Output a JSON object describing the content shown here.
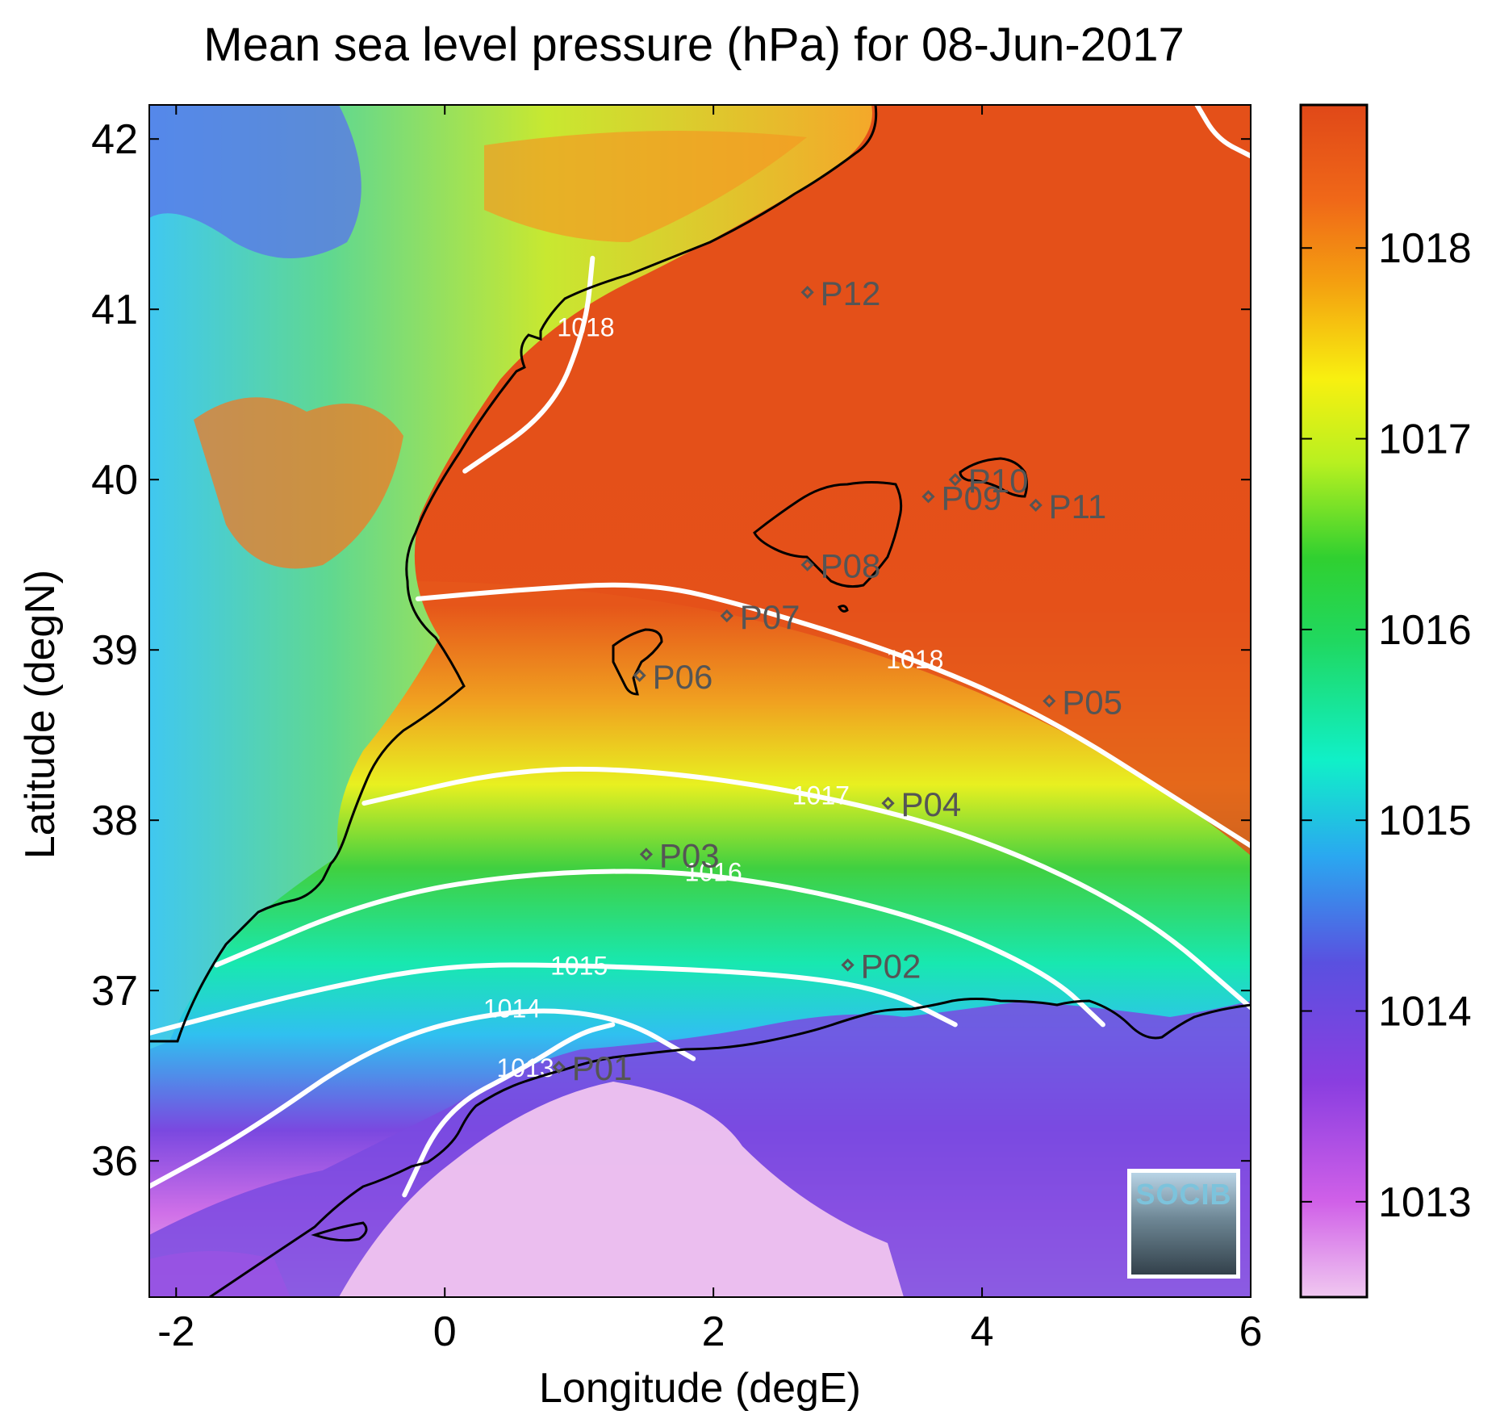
{
  "title": "Mean sea level pressure (hPa) for 08-Jun-2017",
  "xlabel": "Longitude (degE)",
  "ylabel": "Latitude (degN)",
  "logo_text": "SOCIB",
  "colors": {
    "land_high": "#f08a1e",
    "sea_max": "#e4501a",
    "contour": "#ffffff",
    "coast": "#000000",
    "marker": "#555555"
  },
  "chart_data": {
    "type": "heatmap",
    "title": "Mean sea level pressure (hPa) for 08-Jun-2017",
    "xlabel": "Longitude (degE)",
    "ylabel": "Latitude (degN)",
    "xlim": [
      -2.2,
      6.0
    ],
    "ylim": [
      35.2,
      42.2
    ],
    "xticks": [
      -2,
      0,
      2,
      4,
      6
    ],
    "yticks": [
      36,
      37,
      38,
      39,
      40,
      41,
      42
    ],
    "colorbar": {
      "ticks": [
        1013,
        1014,
        1015,
        1016,
        1017,
        1018
      ],
      "range": [
        1012.5,
        1018.75
      ]
    },
    "contours": [
      {
        "label": "1013",
        "points": [
          [
            -0.3,
            35.8
          ],
          [
            0.0,
            36.3
          ],
          [
            0.6,
            36.55
          ],
          [
            1.0,
            36.75
          ],
          [
            1.25,
            36.8
          ]
        ]
      },
      {
        "label": "1014",
        "points": [
          [
            -2.2,
            35.85
          ],
          [
            -1.5,
            36.15
          ],
          [
            -0.5,
            36.7
          ],
          [
            0.5,
            36.9
          ],
          [
            1.3,
            36.85
          ],
          [
            1.85,
            36.6
          ]
        ]
      },
      {
        "label": "1015",
        "points": [
          [
            -2.2,
            36.75
          ],
          [
            -1.0,
            37.0
          ],
          [
            0.0,
            37.15
          ],
          [
            1.0,
            37.15
          ],
          [
            2.5,
            37.1
          ],
          [
            3.3,
            37.0
          ],
          [
            3.8,
            36.8
          ]
        ]
      },
      {
        "label": "1016",
        "points": [
          [
            -1.7,
            37.15
          ],
          [
            -0.5,
            37.55
          ],
          [
            0.7,
            37.7
          ],
          [
            2.0,
            37.7
          ],
          [
            3.5,
            37.45
          ],
          [
            4.5,
            37.1
          ],
          [
            4.9,
            36.8
          ]
        ]
      },
      {
        "label": "1017",
        "points": [
          [
            -0.6,
            38.1
          ],
          [
            0.5,
            38.3
          ],
          [
            1.5,
            38.3
          ],
          [
            2.8,
            38.15
          ],
          [
            4.0,
            37.9
          ],
          [
            5.2,
            37.45
          ],
          [
            6.0,
            36.9
          ]
        ]
      },
      {
        "label": "1018",
        "points": [
          [
            -0.2,
            39.3
          ],
          [
            0.5,
            39.35
          ],
          [
            1.5,
            39.4
          ],
          [
            2.3,
            39.25
          ],
          [
            3.5,
            38.95
          ],
          [
            4.5,
            38.6
          ],
          [
            5.5,
            38.1
          ],
          [
            6.0,
            37.85
          ]
        ]
      },
      {
        "label": "1018",
        "points": [
          [
            0.15,
            40.05
          ],
          [
            0.8,
            40.4
          ],
          [
            1.05,
            40.9
          ],
          [
            1.1,
            41.3
          ]
        ]
      },
      {
        "label": "",
        "points": [
          [
            5.6,
            42.2
          ],
          [
            5.75,
            42.0
          ],
          [
            6.0,
            41.9
          ]
        ]
      }
    ],
    "stations": [
      {
        "name": "P01",
        "lon": 0.85,
        "lat": 36.55
      },
      {
        "name": "P02",
        "lon": 3.0,
        "lat": 37.15
      },
      {
        "name": "P03",
        "lon": 1.5,
        "lat": 37.8
      },
      {
        "name": "P04",
        "lon": 3.3,
        "lat": 38.1
      },
      {
        "name": "P05",
        "lon": 4.5,
        "lat": 38.7
      },
      {
        "name": "P06",
        "lon": 1.45,
        "lat": 38.85
      },
      {
        "name": "P07",
        "lon": 2.1,
        "lat": 39.2
      },
      {
        "name": "P08",
        "lon": 2.7,
        "lat": 39.5
      },
      {
        "name": "P09",
        "lon": 3.6,
        "lat": 39.9
      },
      {
        "name": "P10",
        "lon": 3.8,
        "lat": 40.0
      },
      {
        "name": "P11",
        "lon": 4.4,
        "lat": 39.85
      },
      {
        "name": "P12",
        "lon": 2.7,
        "lat": 41.1
      }
    ]
  }
}
